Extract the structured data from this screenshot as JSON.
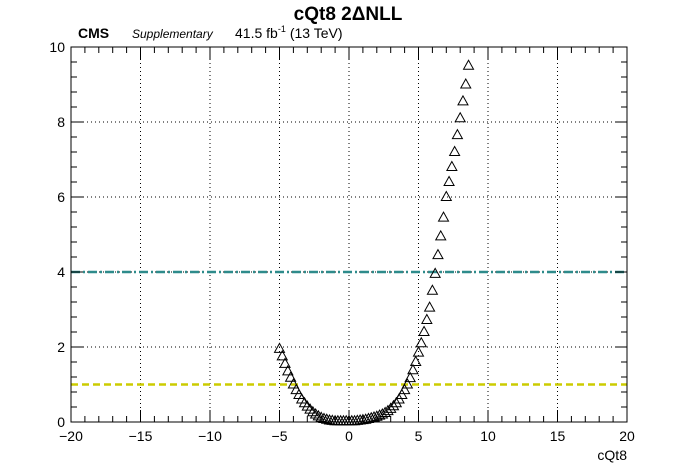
{
  "header": {
    "title": "cQt8 2ΔNLL",
    "cms_label": "CMS",
    "supplementary_label": "Supplementary",
    "lumi_value": "41.5 fb",
    "lumi_superscript": "-1",
    "energy_label": "(13 TeV)"
  },
  "chart_data": {
    "type": "scatter",
    "title": "cQt8 2ΔNLL",
    "xlabel": "cQt8",
    "ylabel": "",
    "xlim": [
      -20,
      20
    ],
    "ylim": [
      0,
      10
    ],
    "x_ticks": [
      -20,
      -15,
      -10,
      -5,
      0,
      5,
      10,
      15,
      20
    ],
    "x_tick_labels": [
      "−20",
      "−15",
      "−10",
      "−5",
      "0",
      "5",
      "10",
      "15",
      "20"
    ],
    "y_ticks": [
      0,
      2,
      4,
      6,
      8,
      10
    ],
    "y_tick_labels": [
      "0",
      "2",
      "4",
      "6",
      "8",
      "10"
    ],
    "grid": true,
    "marker": "open-triangle",
    "series": [
      {
        "marker_color": "#000000",
        "x": [
          -5.0,
          -4.8,
          -4.6,
          -4.4,
          -4.2,
          -4.0,
          -3.8,
          -3.6,
          -3.4,
          -3.2,
          -3.0,
          -2.8,
          -2.6,
          -2.4,
          -2.2,
          -2.0,
          -1.8,
          -1.6,
          -1.4,
          -1.2,
          -1.0,
          -0.8,
          -0.6,
          -0.4,
          -0.2,
          0.0,
          0.2,
          0.4,
          0.6,
          0.8,
          1.0,
          1.2,
          1.4,
          1.6,
          1.8,
          2.0,
          2.2,
          2.4,
          2.6,
          2.8,
          3.0,
          3.2,
          3.4,
          3.6,
          3.8,
          4.0,
          4.2,
          4.4,
          4.6,
          4.8,
          5.0,
          5.2,
          5.4,
          5.6,
          5.8,
          6.0,
          6.2,
          6.4,
          6.6,
          6.8,
          7.0,
          7.2,
          7.4,
          7.6,
          7.8,
          8.0,
          8.2,
          8.4,
          8.6
        ],
        "y": [
          1.95,
          1.75,
          1.55,
          1.35,
          1.18,
          1.0,
          0.85,
          0.72,
          0.6,
          0.5,
          0.41,
          0.33,
          0.26,
          0.2,
          0.15,
          0.11,
          0.08,
          0.06,
          0.04,
          0.03,
          0.02,
          0.02,
          0.02,
          0.02,
          0.02,
          0.02,
          0.02,
          0.02,
          0.03,
          0.04,
          0.05,
          0.06,
          0.08,
          0.1,
          0.12,
          0.14,
          0.17,
          0.2,
          0.24,
          0.29,
          0.35,
          0.42,
          0.5,
          0.6,
          0.72,
          0.85,
          1.0,
          1.17,
          1.38,
          1.6,
          1.85,
          2.1,
          2.4,
          2.72,
          3.05,
          3.5,
          3.95,
          4.45,
          4.95,
          5.45,
          6.0,
          6.4,
          6.8,
          7.2,
          7.65,
          8.1,
          8.55,
          9.0,
          9.5
        ]
      }
    ],
    "reference_lines": [
      {
        "y": 1.0,
        "color": "#cccc00",
        "style": "dashed"
      },
      {
        "y": 4.0,
        "color": "#2e8b8b",
        "style": "dash-dot"
      }
    ]
  }
}
